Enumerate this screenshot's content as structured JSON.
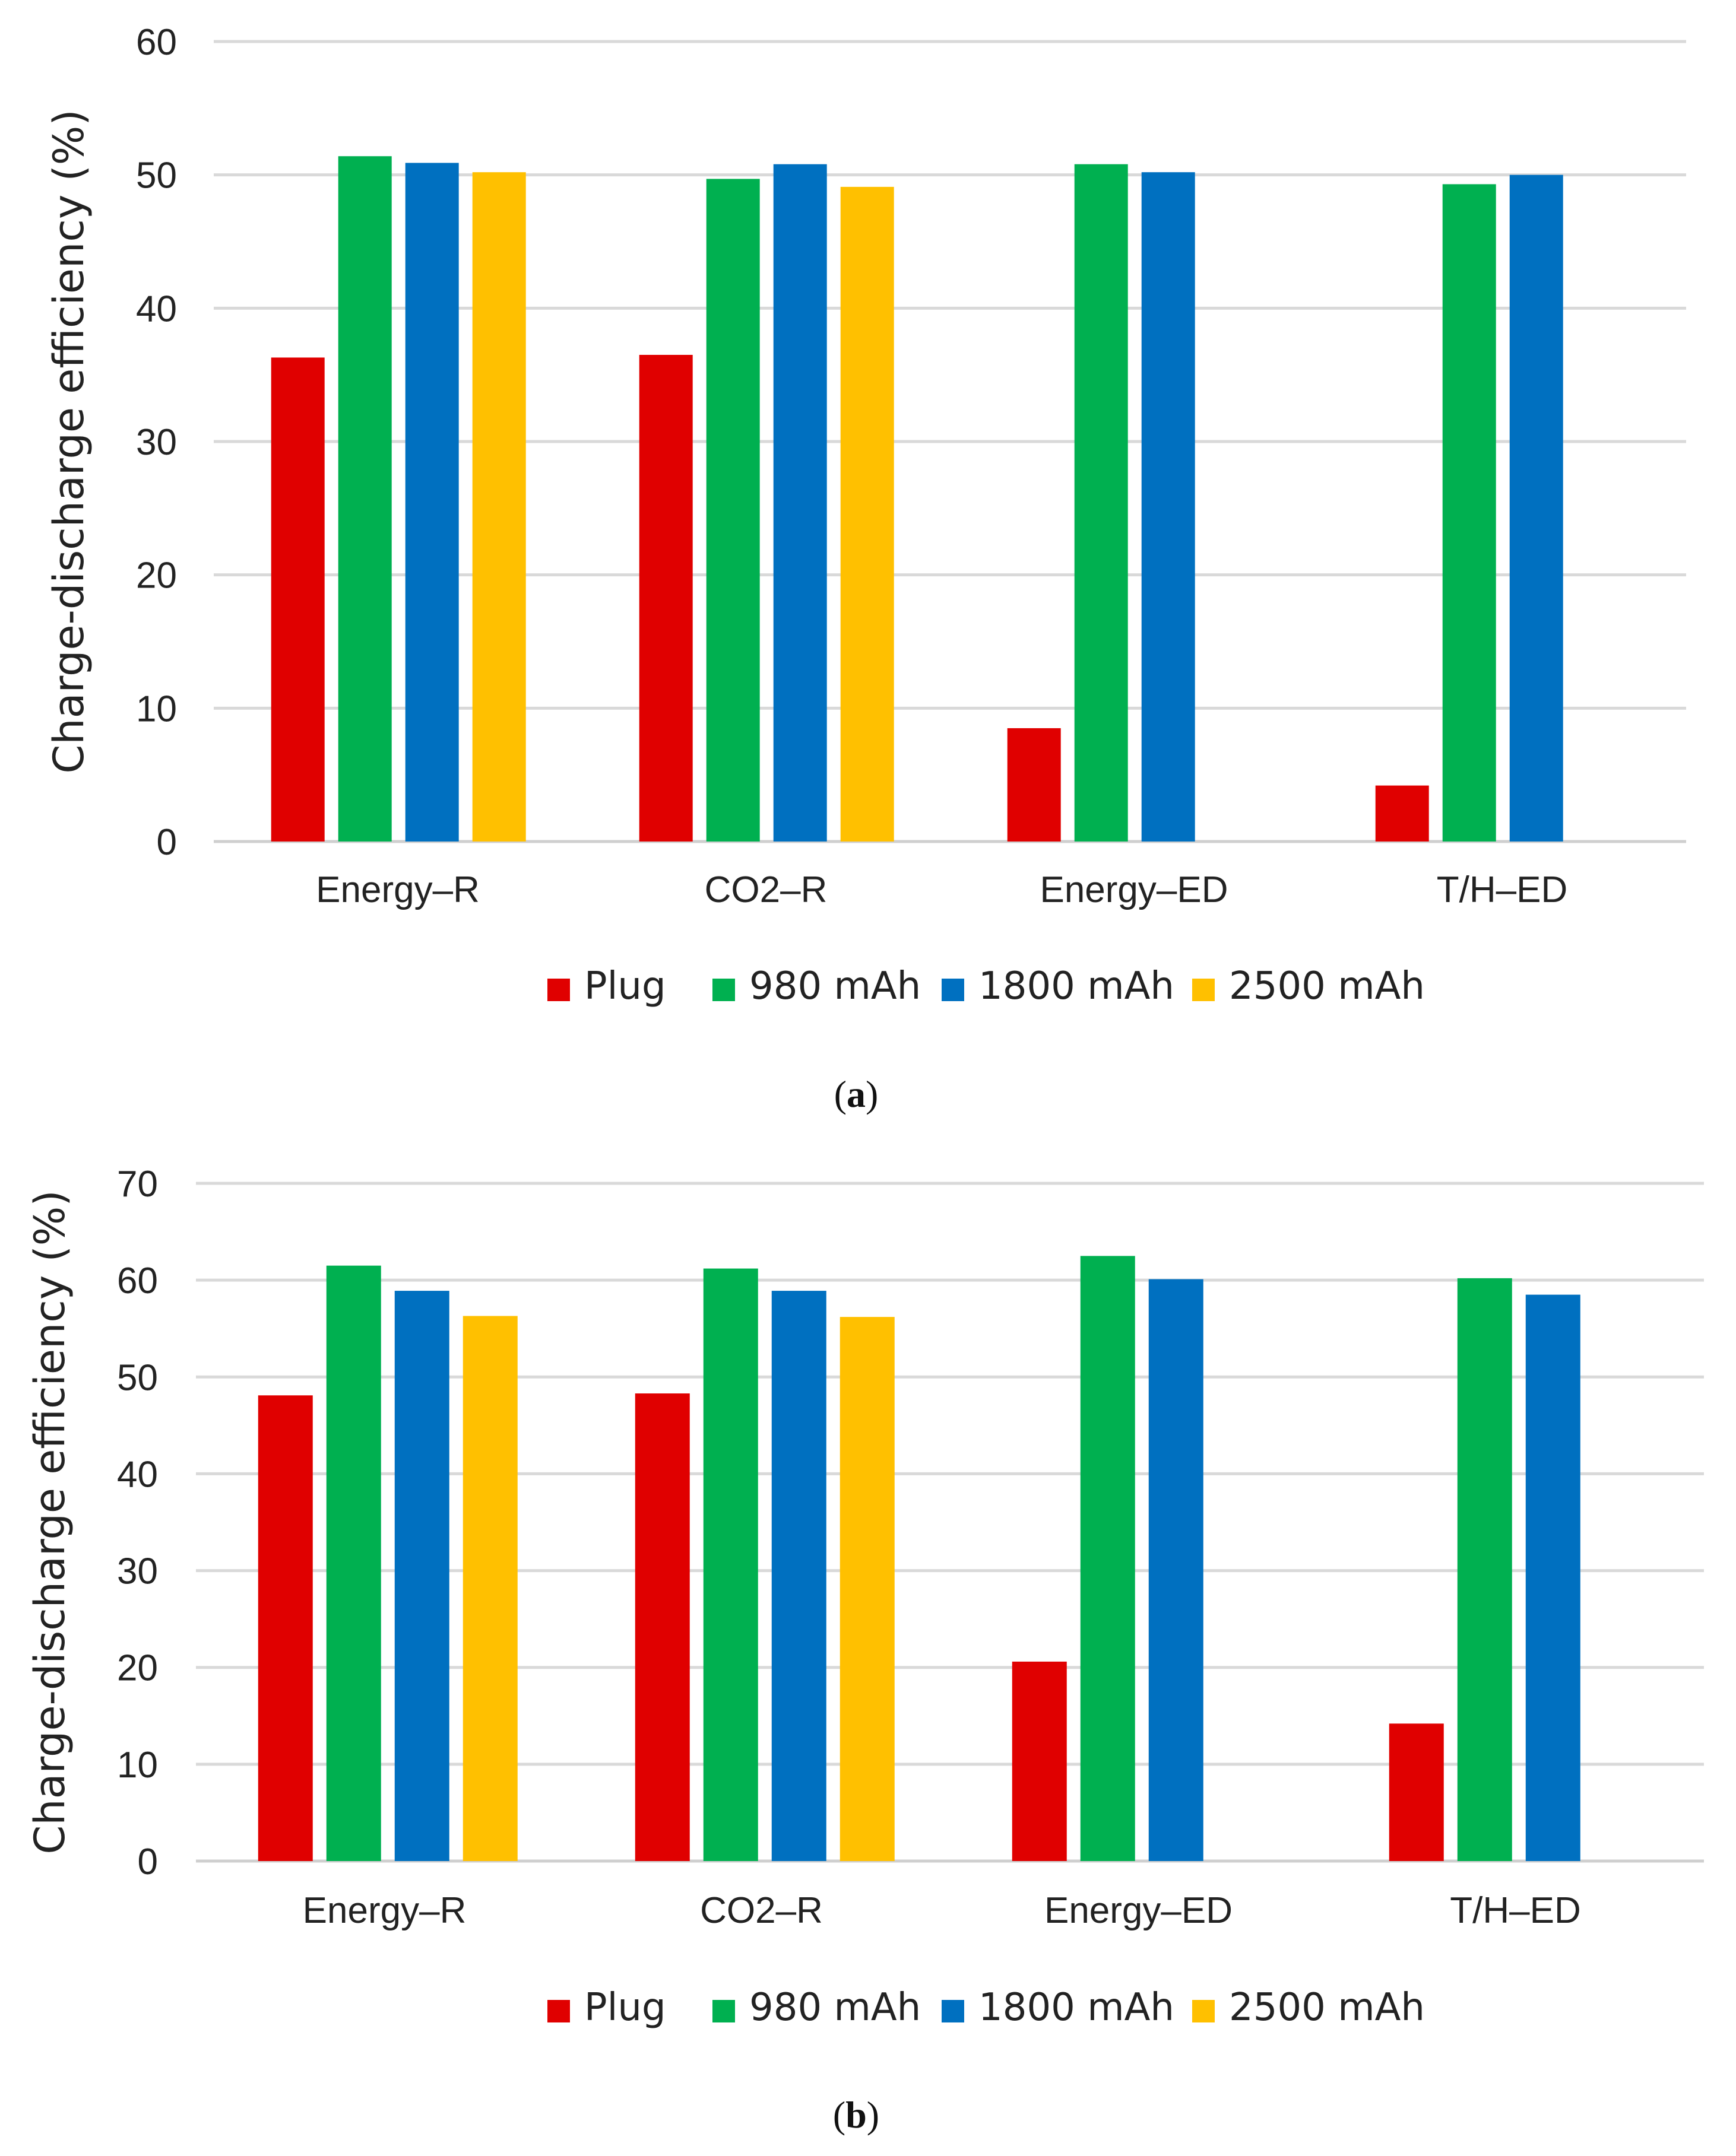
{
  "chart_data": [
    {
      "type": "bar",
      "panel_label": "a",
      "title": "",
      "xlabel": "",
      "ylabel": "Charge-discharge efficiency (%)",
      "ylim": [
        0,
        60
      ],
      "yticks": [
        0,
        10,
        20,
        30,
        40,
        50,
        60
      ],
      "grid": true,
      "legend_position": "bottom",
      "categories": [
        "Energy–R",
        "CO2–R",
        "Energy–ED",
        "T/H–ED"
      ],
      "series": [
        {
          "name": "Plug",
          "color": "#e00000",
          "values": [
            36.3,
            36.5,
            8.5,
            4.2
          ]
        },
        {
          "name": "980 mAh",
          "color": "#00b050",
          "values": [
            51.4,
            49.7,
            50.8,
            49.3
          ]
        },
        {
          "name": "1800 mAh",
          "color": "#0070c0",
          "values": [
            50.9,
            50.8,
            50.2,
            50.0
          ]
        },
        {
          "name": "2500 mAh",
          "color": "#ffc000",
          "values": [
            50.2,
            49.1,
            null,
            null
          ]
        }
      ]
    },
    {
      "type": "bar",
      "panel_label": "b",
      "title": "",
      "xlabel": "",
      "ylabel": "Charge-discharge efficiency (%)",
      "ylim": [
        0,
        70
      ],
      "yticks": [
        0,
        10,
        20,
        30,
        40,
        50,
        60,
        70
      ],
      "grid": true,
      "legend_position": "bottom",
      "categories": [
        "Energy–R",
        "CO2–R",
        "Energy–ED",
        "T/H–ED"
      ],
      "series": [
        {
          "name": "Plug",
          "color": "#e00000",
          "values": [
            48.1,
            48.3,
            20.6,
            14.2
          ]
        },
        {
          "name": "980 mAh",
          "color": "#00b050",
          "values": [
            61.5,
            61.2,
            62.5,
            60.2
          ]
        },
        {
          "name": "1800 mAh",
          "color": "#0070c0",
          "values": [
            58.9,
            58.9,
            60.1,
            58.5
          ]
        },
        {
          "name": "2500 mAh",
          "color": "#ffc000",
          "values": [
            56.3,
            56.2,
            null,
            null
          ]
        }
      ]
    }
  ]
}
